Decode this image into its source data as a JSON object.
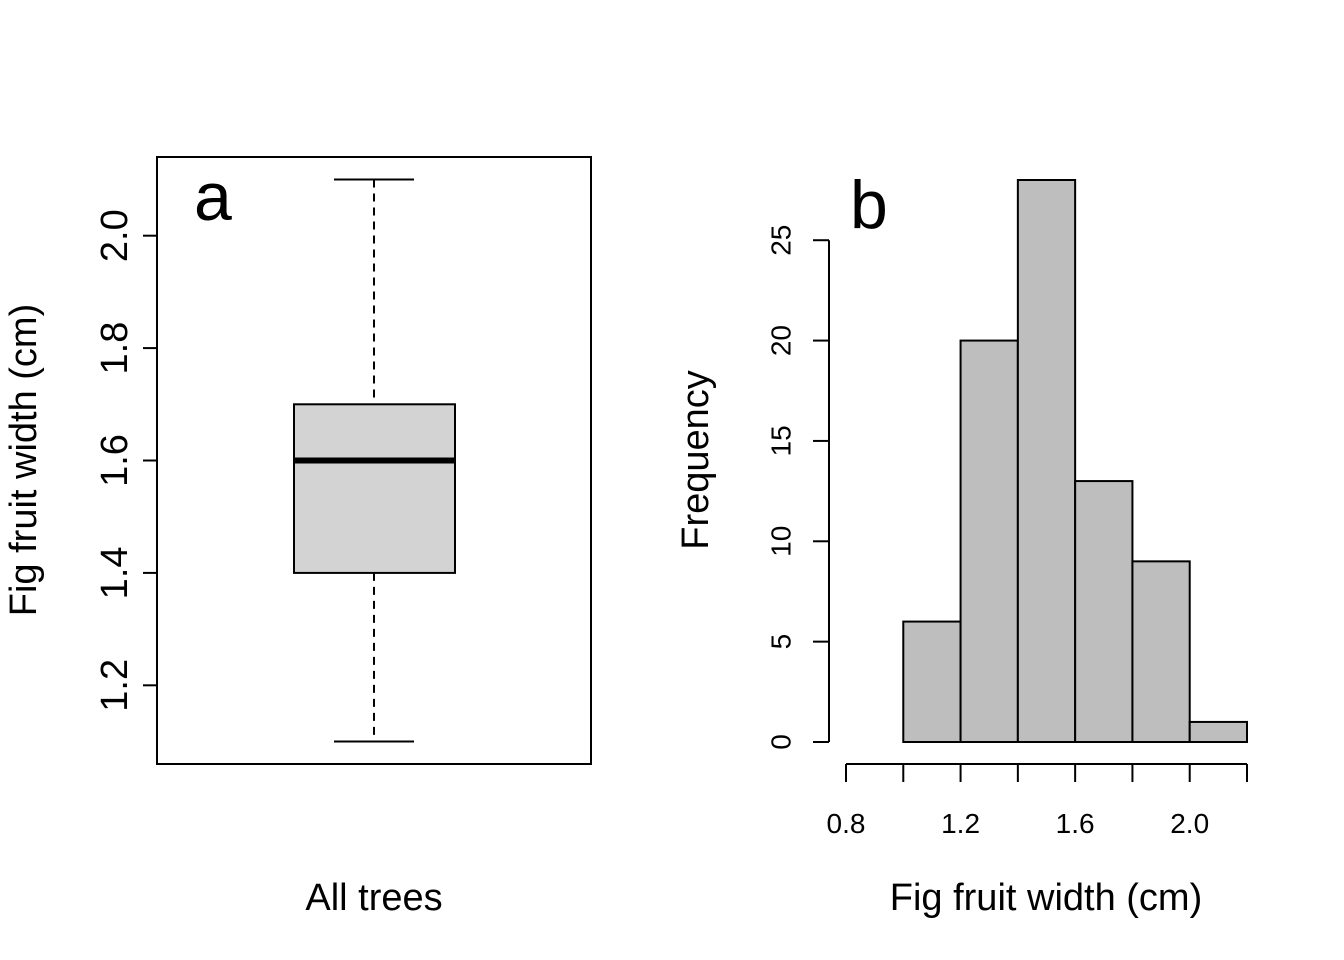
{
  "chart_data": [
    {
      "type": "box",
      "panel_label": "a",
      "xlabel": "All trees",
      "ylabel": "Fig fruit width (cm)",
      "ylim": [
        1.06,
        2.14
      ],
      "yticks": [
        1.2,
        1.4,
        1.6,
        1.8,
        2.0
      ],
      "ytick_labels": [
        "1.2",
        "1.4",
        "1.6",
        "1.8",
        "2.0"
      ],
      "box": {
        "min": 1.1,
        "q1": 1.4,
        "median": 1.6,
        "q3": 1.7,
        "max": 2.1
      },
      "colors": {
        "box_fill": "#d3d3d3",
        "line": "#000000"
      }
    },
    {
      "type": "bar",
      "subtype": "histogram",
      "panel_label": "b",
      "xlabel": "Fig fruit width (cm)",
      "ylabel": "Frequency",
      "xlim": [
        0.8,
        2.2
      ],
      "ylim": [
        0,
        28
      ],
      "bins": [
        {
          "from": 1.0,
          "to": 1.2,
          "count": 6
        },
        {
          "from": 1.2,
          "to": 1.4,
          "count": 20
        },
        {
          "from": 1.4,
          "to": 1.6,
          "count": 28
        },
        {
          "from": 1.6,
          "to": 1.8,
          "count": 13
        },
        {
          "from": 1.8,
          "to": 2.0,
          "count": 9
        },
        {
          "from": 2.0,
          "to": 2.2,
          "count": 1
        }
      ],
      "xticks": [
        0.8,
        1.0,
        1.2,
        1.4,
        1.6,
        1.8,
        2.0,
        2.2
      ],
      "xtick_labels": [
        "0.8",
        "1.2",
        "1.6",
        "2.0"
      ],
      "xtick_label_values": [
        0.8,
        1.2,
        1.6,
        2.0
      ],
      "yticks": [
        0,
        5,
        10,
        15,
        20,
        25
      ],
      "ytick_labels": [
        "0",
        "5",
        "10",
        "15",
        "20",
        "25"
      ],
      "colors": {
        "bar_fill": "#bebebe",
        "line": "#000000"
      }
    }
  ]
}
